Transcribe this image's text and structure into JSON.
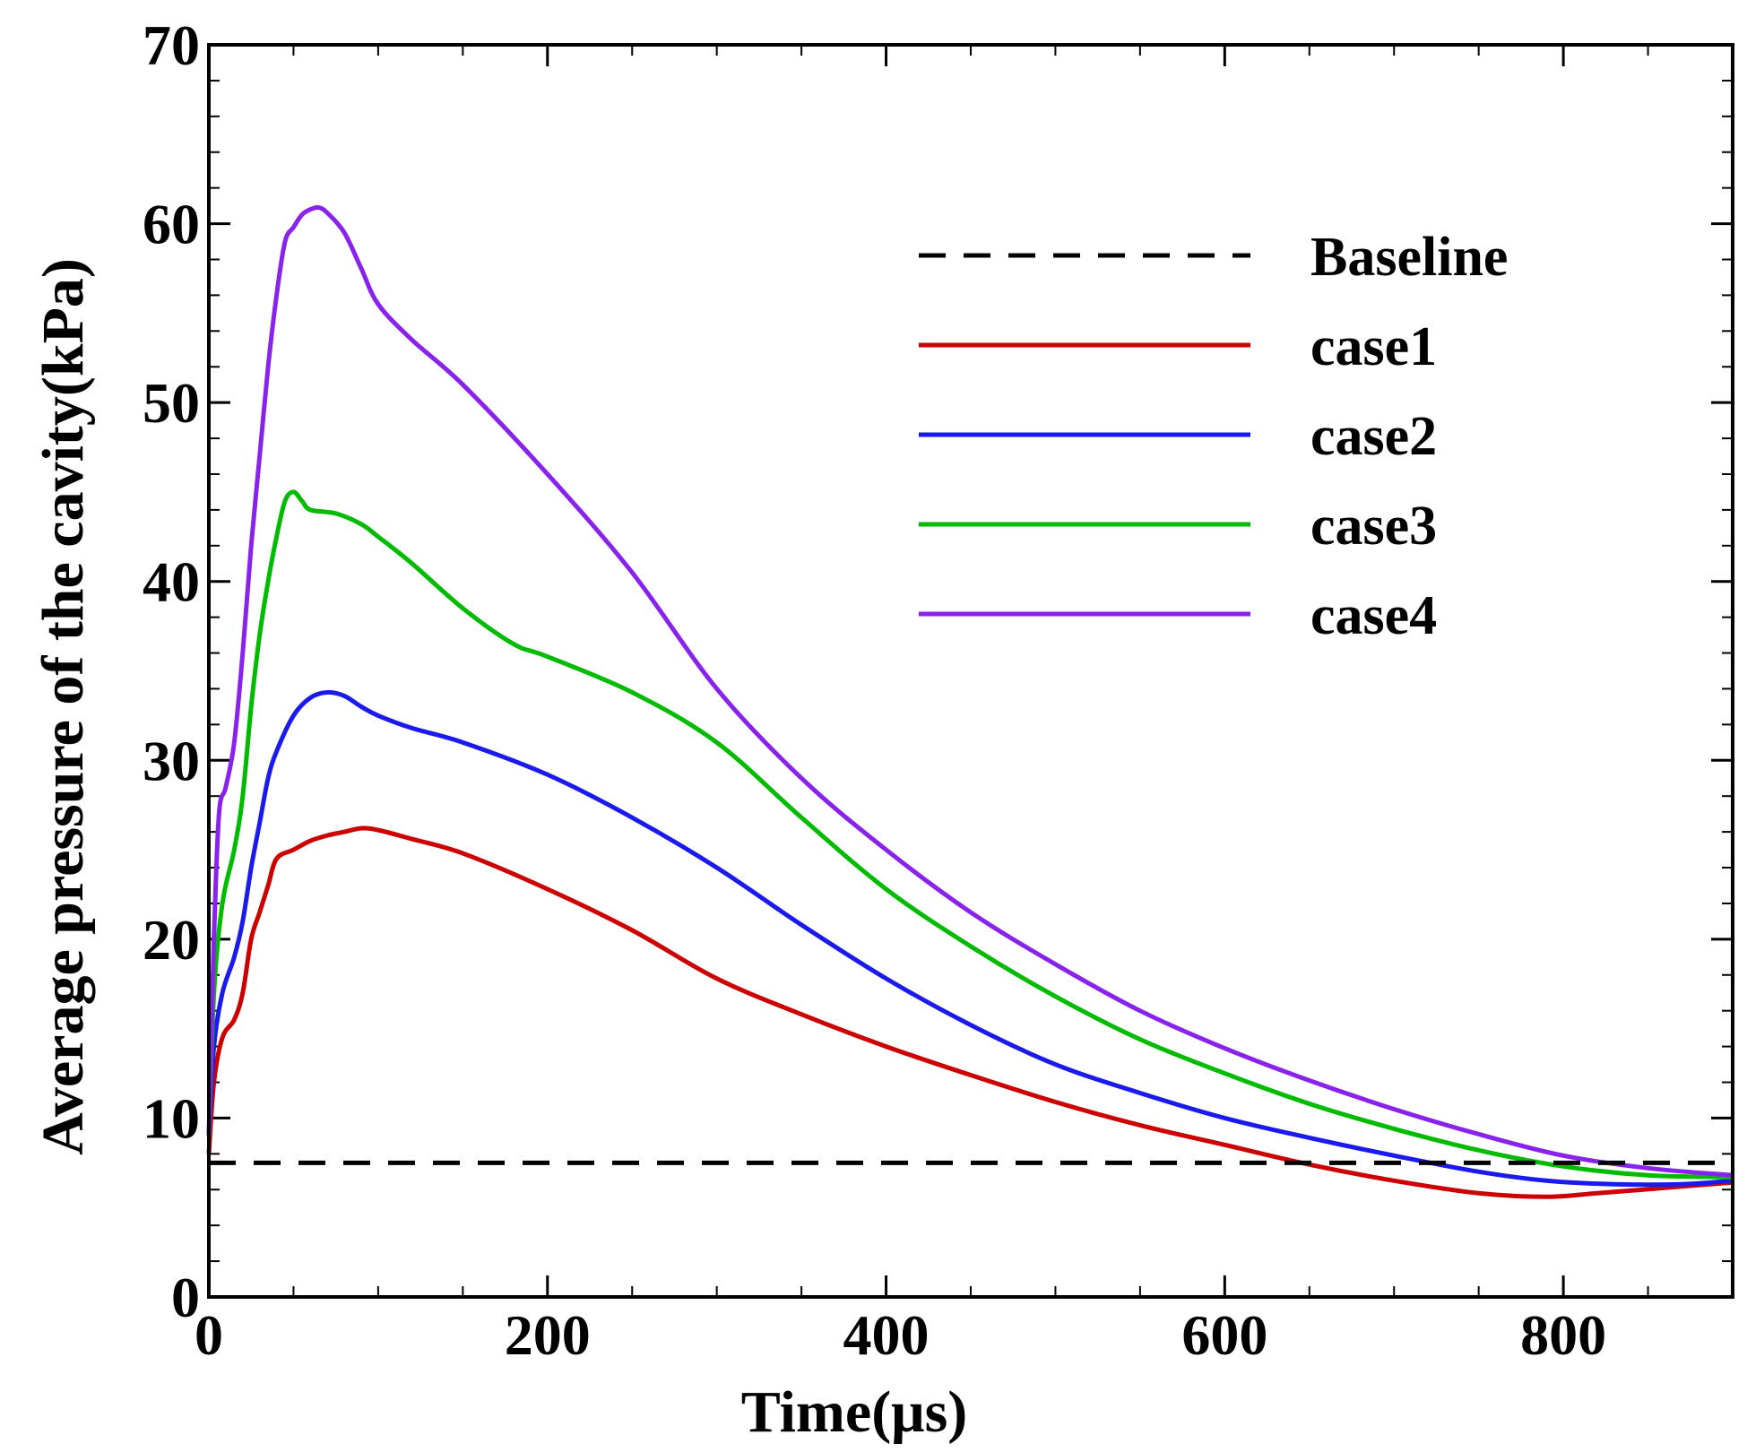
{
  "chart_data": {
    "type": "line",
    "title": "",
    "xlabel": "Time(μs)",
    "ylabel": "Average pressure of the cavity(kPa)",
    "xlim": [
      0,
      900
    ],
    "ylim": [
      0,
      70
    ],
    "x_ticks": [
      0,
      200,
      400,
      600,
      800
    ],
    "y_ticks": [
      0,
      10,
      20,
      30,
      40,
      50,
      60,
      70
    ],
    "x_tick_labels": [
      "0",
      "200",
      "400",
      "600",
      "800"
    ],
    "y_tick_labels": [
      "0",
      "10",
      "20",
      "30",
      "40",
      "50",
      "60",
      "70"
    ],
    "x_minor_step": 50,
    "y_minor_step": 2,
    "grid": false,
    "legend_position": "top-right",
    "series": [
      {
        "name": "Baseline",
        "color": "#000000",
        "dash": true,
        "points": [
          [
            0,
            7.5
          ],
          [
            900,
            7.5
          ]
        ]
      },
      {
        "name": "case1",
        "color": "#cc0000",
        "dash": false,
        "points": [
          [
            0,
            8
          ],
          [
            3,
            12
          ],
          [
            8,
            14.5
          ],
          [
            15,
            15.5
          ],
          [
            20,
            17
          ],
          [
            25,
            20
          ],
          [
            30,
            21.5
          ],
          [
            35,
            23
          ],
          [
            40,
            24.5
          ],
          [
            50,
            25
          ],
          [
            60,
            25.5
          ],
          [
            70,
            25.8
          ],
          [
            80,
            26
          ],
          [
            90,
            26.2
          ],
          [
            100,
            26.1
          ],
          [
            120,
            25.6
          ],
          [
            150,
            24.8
          ],
          [
            200,
            22.8
          ],
          [
            250,
            20.5
          ],
          [
            300,
            17.8
          ],
          [
            350,
            15.8
          ],
          [
            400,
            14.0
          ],
          [
            450,
            12.4
          ],
          [
            500,
            10.9
          ],
          [
            550,
            9.6
          ],
          [
            600,
            8.5
          ],
          [
            650,
            7.4
          ],
          [
            700,
            6.5
          ],
          [
            750,
            5.8
          ],
          [
            790,
            5.6
          ],
          [
            820,
            5.8
          ],
          [
            860,
            6.1
          ],
          [
            900,
            6.4
          ]
        ]
      },
      {
        "name": "case2",
        "color": "#1a1aee",
        "dash": false,
        "points": [
          [
            0,
            9
          ],
          [
            3,
            14
          ],
          [
            8,
            17
          ],
          [
            15,
            19
          ],
          [
            20,
            21
          ],
          [
            25,
            24
          ],
          [
            30,
            26.5
          ],
          [
            35,
            29
          ],
          [
            40,
            30.5
          ],
          [
            50,
            32.5
          ],
          [
            60,
            33.5
          ],
          [
            70,
            33.8
          ],
          [
            80,
            33.6
          ],
          [
            90,
            33
          ],
          [
            100,
            32.5
          ],
          [
            120,
            31.8
          ],
          [
            150,
            31
          ],
          [
            200,
            29.2
          ],
          [
            250,
            26.8
          ],
          [
            300,
            24
          ],
          [
            350,
            20.8
          ],
          [
            400,
            17.8
          ],
          [
            450,
            15.2
          ],
          [
            500,
            13.0
          ],
          [
            550,
            11.4
          ],
          [
            600,
            10.0
          ],
          [
            650,
            8.9
          ],
          [
            700,
            7.9
          ],
          [
            750,
            7.0
          ],
          [
            790,
            6.5
          ],
          [
            830,
            6.3
          ],
          [
            870,
            6.3
          ],
          [
            900,
            6.5
          ]
        ]
      },
      {
        "name": "case3",
        "color": "#00bb00",
        "dash": false,
        "points": [
          [
            0,
            9
          ],
          [
            3,
            17
          ],
          [
            8,
            22
          ],
          [
            15,
            25
          ],
          [
            20,
            28
          ],
          [
            25,
            33
          ],
          [
            30,
            37
          ],
          [
            35,
            40
          ],
          [
            40,
            42.5
          ],
          [
            45,
            44.5
          ],
          [
            50,
            45
          ],
          [
            55,
            44.5
          ],
          [
            60,
            44
          ],
          [
            75,
            43.8
          ],
          [
            90,
            43.2
          ],
          [
            100,
            42.5
          ],
          [
            120,
            41
          ],
          [
            150,
            38.5
          ],
          [
            180,
            36.5
          ],
          [
            200,
            35.8
          ],
          [
            250,
            33.8
          ],
          [
            300,
            31
          ],
          [
            350,
            26.8
          ],
          [
            400,
            22.8
          ],
          [
            450,
            19.6
          ],
          [
            500,
            16.8
          ],
          [
            550,
            14.4
          ],
          [
            600,
            12.5
          ],
          [
            650,
            10.8
          ],
          [
            700,
            9.4
          ],
          [
            750,
            8.2
          ],
          [
            800,
            7.3
          ],
          [
            850,
            6.8
          ],
          [
            900,
            6.7
          ]
        ]
      },
      {
        "name": "case4",
        "color": "#8a22ee",
        "dash": false,
        "points": [
          [
            0,
            9
          ],
          [
            3,
            20
          ],
          [
            6,
            27
          ],
          [
            10,
            28.5
          ],
          [
            15,
            31
          ],
          [
            20,
            36
          ],
          [
            25,
            42
          ],
          [
            30,
            47
          ],
          [
            35,
            52
          ],
          [
            40,
            56
          ],
          [
            45,
            59
          ],
          [
            50,
            59.8
          ],
          [
            55,
            60.5
          ],
          [
            60,
            60.8
          ],
          [
            65,
            60.9
          ],
          [
            70,
            60.6
          ],
          [
            80,
            59.5
          ],
          [
            90,
            57.5
          ],
          [
            100,
            55.5
          ],
          [
            120,
            53.5
          ],
          [
            150,
            51
          ],
          [
            200,
            46
          ],
          [
            250,
            40.5
          ],
          [
            300,
            34
          ],
          [
            350,
            29
          ],
          [
            400,
            25
          ],
          [
            450,
            21.5
          ],
          [
            500,
            18.6
          ],
          [
            550,
            16
          ],
          [
            600,
            13.9
          ],
          [
            650,
            12.1
          ],
          [
            700,
            10.5
          ],
          [
            750,
            9.1
          ],
          [
            800,
            7.9
          ],
          [
            850,
            7.2
          ],
          [
            900,
            6.8
          ]
        ]
      }
    ]
  }
}
